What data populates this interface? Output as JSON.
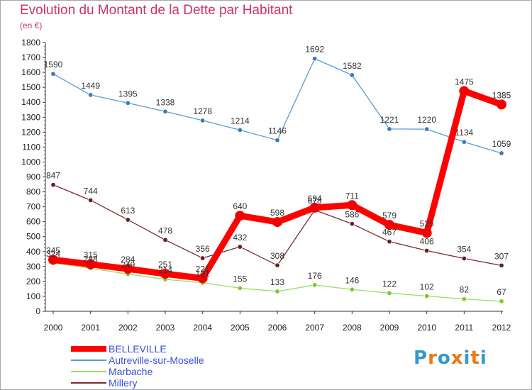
{
  "header": {
    "title": "Evolution du Montant de la Dette par Habitant",
    "subtitle": "(en €)"
  },
  "brand": {
    "logo_text": "Proxiti",
    "letter_colors": [
      "#3399cc",
      "#ee7711",
      "#3399cc",
      "#ee7711",
      "#3399cc",
      "#ee7711",
      "#3399cc"
    ]
  },
  "colors": {
    "title": "#cc3366",
    "axis": "#333333",
    "grid": "#cc3366",
    "legend_text": "#3a4fe0"
  },
  "chart_data": {
    "type": "line",
    "title": "Evolution du Montant de la Dette par Habitant",
    "subtitle": "(en €)",
    "x": [
      "2000",
      "2001",
      "2002",
      "2003",
      "2004",
      "2005",
      "2006",
      "2007",
      "2008",
      "2009",
      "2010",
      "2011",
      "2012"
    ],
    "ylim": [
      0,
      1800
    ],
    "yticks": [
      0,
      100,
      200,
      300,
      400,
      500,
      600,
      700,
      800,
      900,
      1000,
      1100,
      1200,
      1300,
      1400,
      1500,
      1600,
      1700,
      1800
    ],
    "legend_position": "bottom-left",
    "series": [
      {
        "name": "Autreville-sur-Moselle",
        "color": "#5b9bd5",
        "marker": "#3a78c0",
        "values": [
          1590,
          1449,
          1395,
          1338,
          1278,
          1214,
          1146,
          1692,
          1582,
          1221,
          1220,
          1134,
          1059
        ]
      },
      {
        "name": "Millery",
        "color": "#7b2b30",
        "marker": "#6a1f25",
        "values": [
          847,
          744,
          613,
          478,
          356,
          432,
          308,
          678,
          586,
          467,
          406,
          354,
          307
        ]
      },
      {
        "name": "Marbache",
        "color": "#99dd66",
        "marker": "#77cc33",
        "values": [
          324,
          288,
          249,
          214,
          191,
          155,
          133,
          176,
          146,
          122,
          102,
          82,
          67
        ]
      },
      {
        "name": "BELLEVILLE",
        "color": "#ff0000",
        "marker": "#ee0000",
        "values": [
          345,
          315,
          284,
          251,
          221,
          640,
          598,
          694,
          711,
          579,
          525,
          1475,
          1385
        ]
      }
    ],
    "legend": [
      "BELLEVILLE",
      "Autreville-sur-Moselle",
      "Marbache",
      "Millery"
    ]
  }
}
